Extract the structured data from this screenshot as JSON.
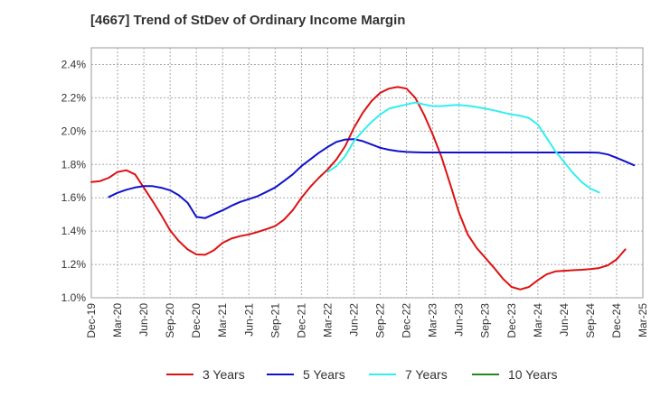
{
  "title": "[4667]  Trend of StDev of Ordinary Income Margin",
  "chart_data": {
    "type": "line",
    "title": "[4667]  Trend of StDev of Ordinary Income Margin",
    "xlabel": "",
    "ylabel": "",
    "ylim": [
      1.0,
      2.5
    ],
    "yticks": [
      "1.0%",
      "1.2%",
      "1.4%",
      "1.6%",
      "1.8%",
      "2.0%",
      "2.2%",
      "2.4%"
    ],
    "ytick_values": [
      1.0,
      1.2,
      1.4,
      1.6,
      1.8,
      2.0,
      2.2,
      2.4
    ],
    "xticks": [
      "Dec-19",
      "Mar-20",
      "Jun-20",
      "Sep-20",
      "Dec-20",
      "Mar-21",
      "Jun-21",
      "Sep-21",
      "Dec-21",
      "Mar-22",
      "Jun-22",
      "Sep-22",
      "Dec-22",
      "Mar-23",
      "Jun-23",
      "Sep-23",
      "Dec-23",
      "Mar-24",
      "Jun-24",
      "Sep-24",
      "Dec-24",
      "Mar-25"
    ],
    "grid": true,
    "legend_position": "bottom",
    "series": [
      {
        "name": "3 Years",
        "color": "#dd1111",
        "start_index": 0,
        "values": [
          1.695,
          1.7,
          1.72,
          1.755,
          1.765,
          1.74,
          1.66,
          1.58,
          1.495,
          1.405,
          1.34,
          1.29,
          1.26,
          1.258,
          1.285,
          1.33,
          1.355,
          1.37,
          1.38,
          1.395,
          1.412,
          1.43,
          1.468,
          1.525,
          1.6,
          1.665,
          1.72,
          1.77,
          1.83,
          1.91,
          2.02,
          2.11,
          2.18,
          2.23,
          2.255,
          2.265,
          2.255,
          2.2,
          2.1,
          1.98,
          1.845,
          1.68,
          1.51,
          1.38,
          1.3,
          1.24,
          1.18,
          1.115,
          1.065,
          1.05,
          1.065,
          1.105,
          1.14,
          1.158,
          1.162,
          1.165,
          1.168,
          1.172,
          1.178,
          1.195,
          1.23,
          1.29
        ]
      },
      {
        "name": "5 Years",
        "color": "#1111cc",
        "start_index": 2,
        "values": [
          1.605,
          1.63,
          1.648,
          1.662,
          1.67,
          1.67,
          1.66,
          1.645,
          1.615,
          1.57,
          1.485,
          1.478,
          1.502,
          1.525,
          1.552,
          1.575,
          1.592,
          1.61,
          1.635,
          1.662,
          1.7,
          1.74,
          1.79,
          1.83,
          1.87,
          1.905,
          1.935,
          1.95,
          1.952,
          1.94,
          1.92,
          1.9,
          1.888,
          1.88,
          1.875,
          1.873,
          1.872,
          1.872,
          1.872,
          1.872,
          1.872,
          1.872,
          1.872,
          1.872,
          1.872,
          1.872,
          1.872,
          1.872,
          1.872,
          1.872,
          1.872,
          1.872,
          1.872,
          1.872,
          1.872,
          1.872,
          1.87,
          1.86,
          1.84,
          1.818,
          1.795
        ]
      },
      {
        "name": "7 Years",
        "color": "#33eeee",
        "start_index": 27,
        "values": [
          1.755,
          1.79,
          1.85,
          1.94,
          2.0,
          2.055,
          2.1,
          2.135,
          2.148,
          2.16,
          2.172,
          2.16,
          2.15,
          2.15,
          2.155,
          2.157,
          2.152,
          2.145,
          2.135,
          2.125,
          2.112,
          2.1,
          2.092,
          2.078,
          2.04,
          1.96,
          1.88,
          1.815,
          1.75,
          1.695,
          1.655,
          1.632
        ]
      },
      {
        "name": "10 Years",
        "color": "#228822",
        "start_index": 0,
        "values": []
      }
    ]
  }
}
